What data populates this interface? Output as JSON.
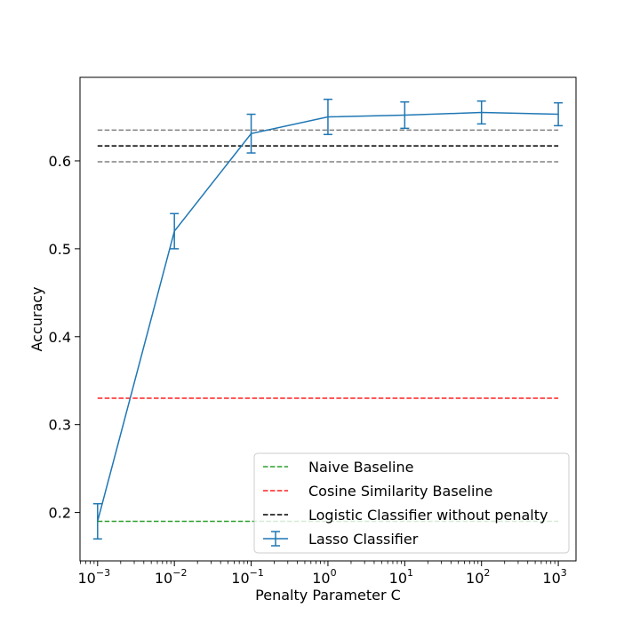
{
  "chart_data": {
    "type": "line",
    "title": "",
    "xlabel": "Penalty Parameter C",
    "ylabel": "Accuracy",
    "xscale": "log",
    "xlim": [
      0.00059,
      1700
    ],
    "ylim": [
      0.145,
      0.695
    ],
    "x_ticks": [
      {
        "value": 0.001,
        "base": "10",
        "exp": "−3"
      },
      {
        "value": 0.01,
        "base": "10",
        "exp": "−2"
      },
      {
        "value": 0.1,
        "base": "10",
        "exp": "−1"
      },
      {
        "value": 1,
        "base": "10",
        "exp": "0"
      },
      {
        "value": 10,
        "base": "10",
        "exp": "1"
      },
      {
        "value": 100,
        "base": "10",
        "exp": "2"
      },
      {
        "value": 1000,
        "base": "10",
        "exp": "3"
      }
    ],
    "y_ticks": [
      {
        "value": 0.2,
        "label": "0.2"
      },
      {
        "value": 0.3,
        "label": "0.3"
      },
      {
        "value": 0.4,
        "label": "0.4"
      },
      {
        "value": 0.5,
        "label": "0.5"
      },
      {
        "value": 0.6,
        "label": "0.6"
      }
    ],
    "grid": false,
    "legend_position": "lower-right",
    "series": [
      {
        "name": "Naive Baseline",
        "kind": "hline",
        "y": 0.19,
        "x_range": [
          0.001,
          1000
        ],
        "color": "#2ca02c",
        "dashed": true
      },
      {
        "name": "Cosine Similarity Baseline",
        "kind": "hline",
        "y": 0.33,
        "x_range": [
          0.001,
          1000
        ],
        "color": "#ff2020",
        "dashed": true
      },
      {
        "name": "Logistic Classifier without penalty",
        "kind": "hline",
        "y": 0.617,
        "x_range": [
          0.001,
          1000
        ],
        "color": "#000000",
        "dashed": true
      },
      {
        "name": "",
        "kind": "hline",
        "y": 0.635,
        "x_range": [
          0.001,
          1000
        ],
        "color": "#808080",
        "dashed": true
      },
      {
        "name": "",
        "kind": "hline",
        "y": 0.599,
        "x_range": [
          0.001,
          1000
        ],
        "color": "#808080",
        "dashed": true
      },
      {
        "name": "Lasso Classifier",
        "kind": "errorbar",
        "color": "#1f77b4",
        "x": [
          0.001,
          0.01,
          0.1,
          1,
          10,
          100,
          1000
        ],
        "y": [
          0.19,
          0.52,
          0.631,
          0.65,
          0.652,
          0.655,
          0.653
        ],
        "err": [
          0.02,
          0.02,
          0.022,
          0.02,
          0.015,
          0.013,
          0.013
        ]
      }
    ]
  }
}
